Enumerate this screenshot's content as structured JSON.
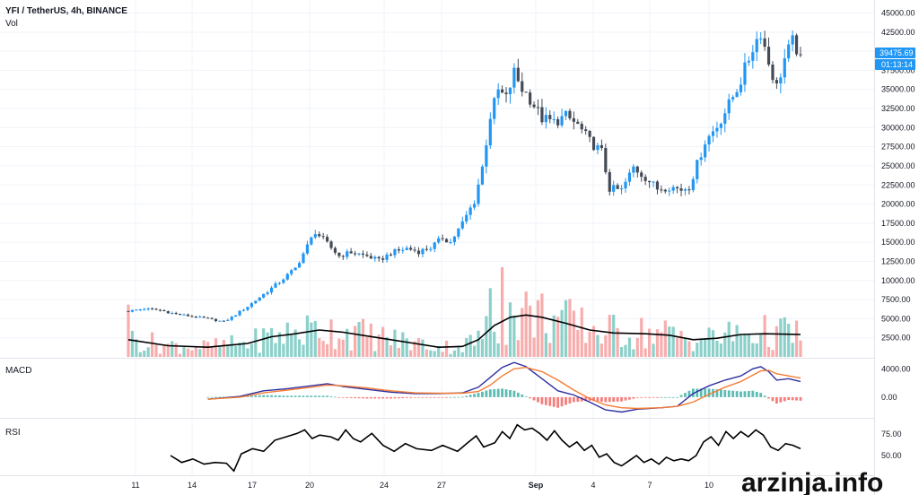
{
  "header": {
    "symbol": "YFI / TetherUS, 4h, BINANCE",
    "volume_label": "Vol"
  },
  "price_badges": {
    "last_price": "39475.69",
    "countdown": "01:13:14",
    "color": "#2196f3"
  },
  "watermark": "arzinja.info",
  "colors": {
    "up": "#2196f3",
    "down": "#454b55",
    "vol_up": "#80cbc4",
    "vol_down": "#f7a4a4",
    "vol_ma": "#000000",
    "macd_line": "#2f2fa0",
    "signal_line": "#f57c34",
    "hist_up": "#26a69a",
    "hist_down": "#ef5350",
    "rsi_line": "#000000",
    "grid": "#f0f3fa",
    "axis": "#e0e3eb"
  },
  "chart_data": [
    {
      "type": "candlestick",
      "title": "YFI / TetherUS, 4h, BINANCE",
      "x_labels": [
        "11",
        "14",
        "17",
        "20",
        "24",
        "27",
        "Sep",
        "4",
        "7",
        "10"
      ],
      "y_ticks": [
        "45000.00",
        "42500.00",
        "40000.00",
        "37500.00",
        "35000.00",
        "32500.00",
        "30000.00",
        "27500.00",
        "25000.00",
        "22500.00",
        "20000.00",
        "17500.00",
        "15000.00",
        "12500.00",
        "10000.00",
        "7500.00",
        "5000.00",
        "2500.00"
      ],
      "ylim": [
        0,
        46000
      ],
      "close_path": [
        [
          0,
          6000
        ],
        [
          4,
          6300
        ],
        [
          8,
          6100
        ],
        [
          12,
          5600
        ],
        [
          16,
          5300
        ],
        [
          20,
          5000
        ],
        [
          24,
          4600
        ],
        [
          26,
          5200
        ],
        [
          30,
          6600
        ],
        [
          34,
          8200
        ],
        [
          38,
          9800
        ],
        [
          42,
          11600
        ],
        [
          45,
          14500
        ],
        [
          47,
          16400
        ],
        [
          50,
          14800
        ],
        [
          53,
          13200
        ],
        [
          56,
          13700
        ],
        [
          60,
          13200
        ],
        [
          63,
          12600
        ],
        [
          66,
          13600
        ],
        [
          70,
          14200
        ],
        [
          73,
          13800
        ],
        [
          76,
          14300
        ],
        [
          79,
          15600
        ],
        [
          81,
          15000
        ],
        [
          84,
          17500
        ],
        [
          87,
          20400
        ],
        [
          89,
          24800
        ],
        [
          91,
          31500
        ],
        [
          93,
          34800
        ],
        [
          95,
          33800
        ],
        [
          97,
          37200
        ],
        [
          99,
          35100
        ],
        [
          101,
          33800
        ],
        [
          104,
          31200
        ],
        [
          107,
          30700
        ],
        [
          110,
          31500
        ],
        [
          113,
          30300
        ],
        [
          116,
          28200
        ],
        [
          119,
          26800
        ],
        [
          121,
          22000
        ],
        [
          124,
          21800
        ],
        [
          127,
          24800
        ],
        [
          130,
          23500
        ],
        [
          133,
          22000
        ],
        [
          136,
          22300
        ],
        [
          139,
          21900
        ],
        [
          141,
          22300
        ],
        [
          143,
          25200
        ],
        [
          145,
          28200
        ],
        [
          148,
          30200
        ],
        [
          151,
          33000
        ],
        [
          154,
          36200
        ],
        [
          157,
          40500
        ],
        [
          159,
          42600
        ],
        [
          161,
          38500
        ],
        [
          163,
          35300
        ],
        [
          165,
          39000
        ],
        [
          167,
          41200
        ],
        [
          169,
          39475
        ]
      ],
      "candle_count": 170,
      "last_price": 39475.69
    },
    {
      "type": "bar",
      "title": "Vol",
      "y_ticks": [],
      "note": "volume histogram with moving average overlay in the price pane",
      "ma_path": [
        [
          0,
          2300
        ],
        [
          10,
          1500
        ],
        [
          20,
          1300
        ],
        [
          30,
          1800
        ],
        [
          36,
          2700
        ],
        [
          42,
          3100
        ],
        [
          48,
          3600
        ],
        [
          54,
          3300
        ],
        [
          60,
          2800
        ],
        [
          66,
          2300
        ],
        [
          72,
          1800
        ],
        [
          78,
          1300
        ],
        [
          84,
          1400
        ],
        [
          88,
          2300
        ],
        [
          92,
          4200
        ],
        [
          96,
          5300
        ],
        [
          100,
          5600
        ],
        [
          104,
          5300
        ],
        [
          110,
          4500
        ],
        [
          116,
          3600
        ],
        [
          122,
          3200
        ],
        [
          130,
          3100
        ],
        [
          136,
          2900
        ],
        [
          142,
          2300
        ],
        [
          148,
          2500
        ],
        [
          154,
          3000
        ],
        [
          160,
          3100
        ],
        [
          169,
          3000
        ]
      ]
    },
    {
      "type": "line",
      "title": "MACD",
      "y_ticks": [
        "4000.00",
        "0.00"
      ],
      "ylim": [
        -2800,
        5300
      ],
      "series": [
        {
          "name": "",
          "path": [
            [
              20,
              -300
            ],
            [
              28,
              100
            ],
            [
              34,
              900
            ],
            [
              40,
              1200
            ],
            [
              46,
              1600
            ],
            [
              50,
              1900
            ],
            [
              54,
              1500
            ],
            [
              60,
              1100
            ],
            [
              66,
              700
            ],
            [
              72,
              500
            ],
            [
              78,
              500
            ],
            [
              84,
              600
            ],
            [
              88,
              1400
            ],
            [
              91,
              2800
            ],
            [
              94,
              4200
            ],
            [
              97,
              4900
            ],
            [
              100,
              4300
            ],
            [
              104,
              2600
            ],
            [
              108,
              900
            ],
            [
              112,
              300
            ],
            [
              116,
              -700
            ],
            [
              120,
              -1800
            ],
            [
              124,
              -2100
            ],
            [
              128,
              -1700
            ],
            [
              134,
              -1500
            ],
            [
              138,
              -1300
            ],
            [
              142,
              500
            ],
            [
              146,
              1600
            ],
            [
              150,
              2400
            ],
            [
              154,
              3000
            ],
            [
              157,
              4000
            ],
            [
              159,
              4300
            ],
            [
              161,
              3600
            ],
            [
              163,
              2400
            ],
            [
              166,
              2600
            ],
            [
              169,
              2200
            ]
          ]
        },
        {
          "name": "",
          "path": [
            [
              20,
              -300
            ],
            [
              28,
              0
            ],
            [
              34,
              600
            ],
            [
              40,
              1000
            ],
            [
              46,
              1400
            ],
            [
              50,
              1700
            ],
            [
              54,
              1600
            ],
            [
              60,
              1300
            ],
            [
              66,
              900
            ],
            [
              72,
              600
            ],
            [
              78,
              550
            ],
            [
              84,
              550
            ],
            [
              88,
              800
            ],
            [
              91,
              1700
            ],
            [
              94,
              3000
            ],
            [
              97,
              4000
            ],
            [
              100,
              4200
            ],
            [
              104,
              3600
            ],
            [
              108,
              2400
            ],
            [
              112,
              1000
            ],
            [
              116,
              -200
            ],
            [
              120,
              -1100
            ],
            [
              124,
              -1500
            ],
            [
              128,
              -1600
            ],
            [
              134,
              -1500
            ],
            [
              138,
              -1300
            ],
            [
              142,
              -700
            ],
            [
              146,
              400
            ],
            [
              150,
              1400
            ],
            [
              154,
              2200
            ],
            [
              157,
              3100
            ],
            [
              159,
              3700
            ],
            [
              161,
              3800
            ],
            [
              163,
              3300
            ],
            [
              166,
              3000
            ],
            [
              169,
              2700
            ]
          ]
        }
      ]
    },
    {
      "type": "line",
      "title": "RSI",
      "y_ticks": [
        "75.00",
        "50.00"
      ],
      "ylim": [
        28,
        92
      ],
      "series": [
        {
          "name": "",
          "path": [
            [
              0,
              50
            ],
            [
              3,
              42
            ],
            [
              6,
              46
            ],
            [
              9,
              40
            ],
            [
              12,
              42
            ],
            [
              15,
              41
            ],
            [
              17,
              32
            ],
            [
              19,
              52
            ],
            [
              22,
              58
            ],
            [
              25,
              55
            ],
            [
              28,
              68
            ],
            [
              31,
              72
            ],
            [
              34,
              76
            ],
            [
              36,
              80
            ],
            [
              38,
              70
            ],
            [
              40,
              74
            ],
            [
              43,
              72
            ],
            [
              45,
              68
            ],
            [
              47,
              80
            ],
            [
              49,
              70
            ],
            [
              51,
              66
            ],
            [
              54,
              76
            ],
            [
              57,
              62
            ],
            [
              60,
              55
            ],
            [
              63,
              64
            ],
            [
              66,
              58
            ],
            [
              70,
              56
            ],
            [
              73,
              62
            ],
            [
              77,
              55
            ],
            [
              80,
              66
            ],
            [
              82,
              73
            ],
            [
              84,
              60
            ],
            [
              87,
              65
            ],
            [
              89,
              78
            ],
            [
              91,
              70
            ],
            [
              93,
              86
            ],
            [
              95,
              80
            ],
            [
              97,
              82
            ],
            [
              99,
              76
            ],
            [
              101,
              68
            ],
            [
              103,
              79
            ],
            [
              105,
              68
            ],
            [
              107,
              60
            ],
            [
              109,
              66
            ],
            [
              111,
              56
            ],
            [
              113,
              62
            ],
            [
              115,
              48
            ],
            [
              117,
              52
            ],
            [
              119,
              42
            ],
            [
              121,
              38
            ],
            [
              123,
              44
            ],
            [
              125,
              50
            ],
            [
              127,
              42
            ],
            [
              129,
              46
            ],
            [
              131,
              40
            ],
            [
              133,
              48
            ],
            [
              135,
              44
            ],
            [
              137,
              46
            ],
            [
              139,
              44
            ],
            [
              141,
              50
            ],
            [
              143,
              66
            ],
            [
              145,
              72
            ],
            [
              147,
              62
            ],
            [
              149,
              78
            ],
            [
              151,
              70
            ],
            [
              153,
              78
            ],
            [
              155,
              72
            ],
            [
              157,
              80
            ],
            [
              159,
              74
            ],
            [
              161,
              60
            ],
            [
              163,
              56
            ],
            [
              165,
              64
            ],
            [
              167,
              62
            ],
            [
              169,
              58
            ]
          ]
        }
      ]
    }
  ]
}
